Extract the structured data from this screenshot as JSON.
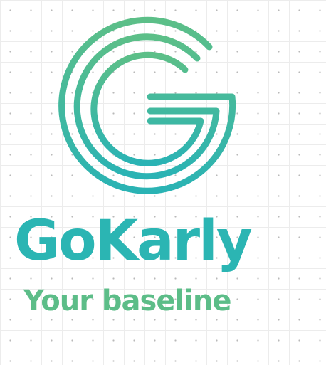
{
  "logo": {
    "icon": "g-letter-logo-icon",
    "gradient_top_color": "#5cbf88",
    "gradient_bottom_color": "#2ab3b4"
  },
  "brand": {
    "name": "GoKarly",
    "color": "#2bb5b3"
  },
  "tagline": {
    "text": "Your baseline",
    "color": "#5cbd88"
  }
}
